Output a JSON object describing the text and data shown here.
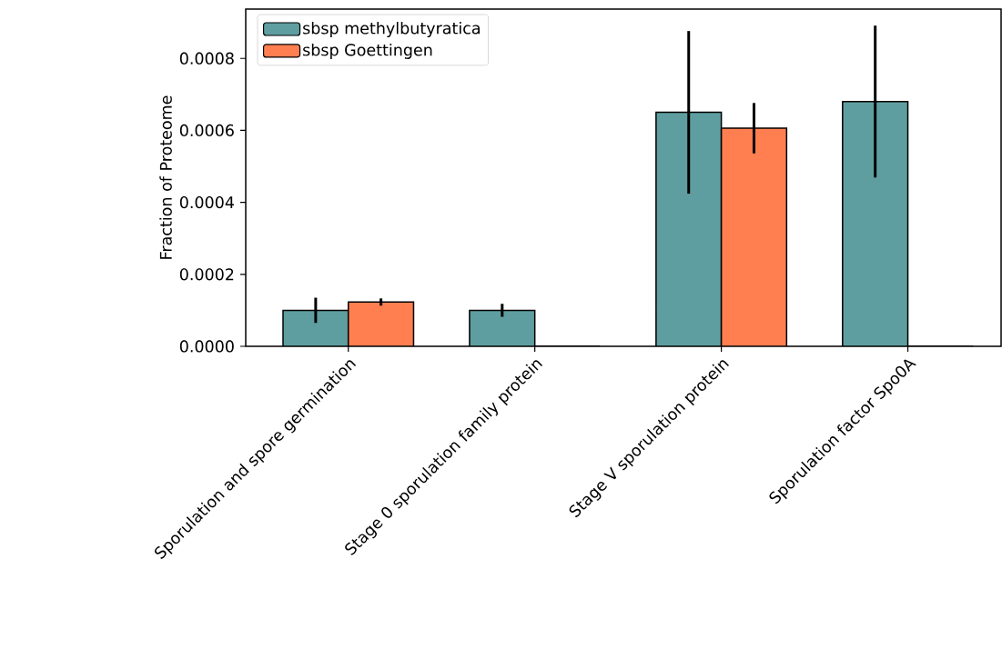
{
  "chart_data": {
    "type": "bar",
    "ylabel": "Fraction of Proteome",
    "categories": [
      "Sporulation and spore germination",
      "Stage 0 sporulation family protein",
      "Stage V sporulation protein",
      "Sporulation factor Spo0A"
    ],
    "series": [
      {
        "name": "sbsp methylbutyratica",
        "color": "#5f9ea0",
        "values": [
          0.0001,
          0.0001,
          0.00065,
          0.00068
        ],
        "errors": [
          3.5e-05,
          1.8e-05,
          0.000226,
          0.000211
        ]
      },
      {
        "name": "sbsp Goettingen",
        "color": "#ff7f50",
        "values": [
          0.000123,
          0,
          0.000606,
          0
        ],
        "errors": [
          1e-05,
          null,
          7e-05,
          null
        ]
      }
    ],
    "ylim": [
      0,
      0.000937
    ],
    "yticks": [
      {
        "value": 0,
        "label": "0.0000"
      },
      {
        "value": 0.0002,
        "label": "0.0002"
      },
      {
        "value": 0.0004,
        "label": "0.0004"
      },
      {
        "value": 0.0006,
        "label": "0.0006"
      },
      {
        "value": 0.0008,
        "label": "0.0008"
      }
    ],
    "grid": false,
    "legend": "top left"
  }
}
